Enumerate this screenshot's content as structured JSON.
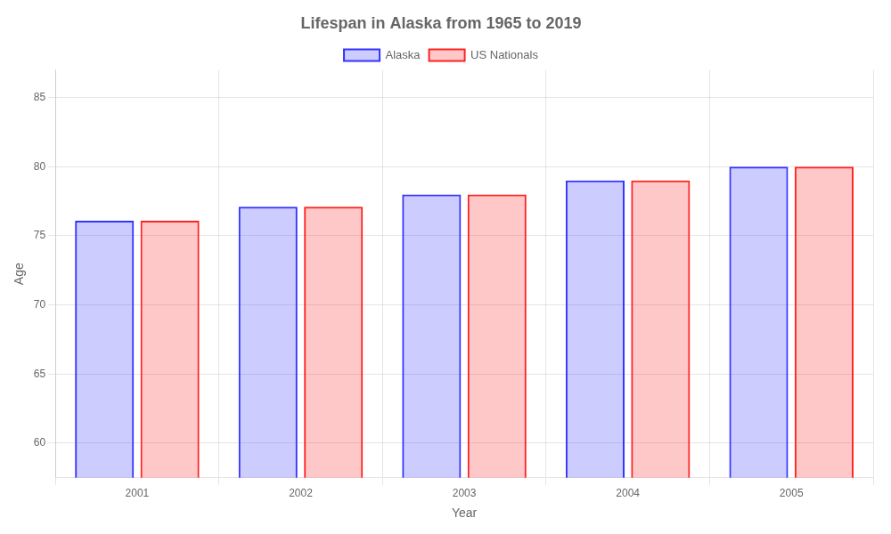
{
  "chart_data": {
    "type": "bar",
    "title": "Lifespan in Alaska from 1965 to 2019",
    "xlabel": "Year",
    "ylabel": "Age",
    "categories": [
      "2001",
      "2002",
      "2003",
      "2004",
      "2005"
    ],
    "series": [
      {
        "name": "Alaska",
        "color": "#3333ff",
        "values": [
          76.1,
          77.1,
          78.0,
          79.0,
          80.0
        ]
      },
      {
        "name": "US Nationals",
        "color": "#ff2222",
        "values": [
          76.1,
          77.1,
          78.0,
          79.0,
          80.0
        ]
      }
    ],
    "ylim": [
      57.5,
      87
    ],
    "yticks": [
      60,
      65,
      70,
      75,
      80,
      85
    ],
    "grid": true,
    "legend": "top"
  }
}
